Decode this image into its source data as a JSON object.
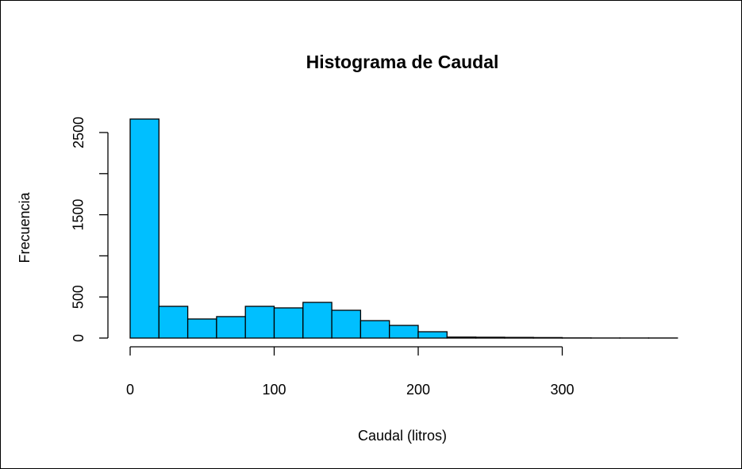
{
  "chart_data": {
    "type": "histogram",
    "title": "Histograma de Caudal",
    "x_label": "Caudal (litros)",
    "y_label": "Frecuencia",
    "bins": [
      0,
      20,
      40,
      60,
      80,
      100,
      120,
      140,
      160,
      180,
      200,
      220,
      240,
      260,
      280,
      300,
      320,
      340,
      360,
      380
    ],
    "counts": [
      2664,
      386,
      232,
      261,
      386,
      367,
      434,
      338,
      212,
      154,
      77,
      12,
      10,
      8,
      6,
      2,
      1,
      1,
      1
    ],
    "color": "#00bfff",
    "xlim": [
      0,
      380
    ],
    "xticks": [
      0,
      100,
      200,
      300
    ],
    "ylim": [
      0,
      2700
    ],
    "yticks": [
      0,
      500,
      {
        "value": 1000,
        "label": null
      },
      1500,
      {
        "value": 2000,
        "label": null
      },
      2500
    ],
    "grid": false
  }
}
